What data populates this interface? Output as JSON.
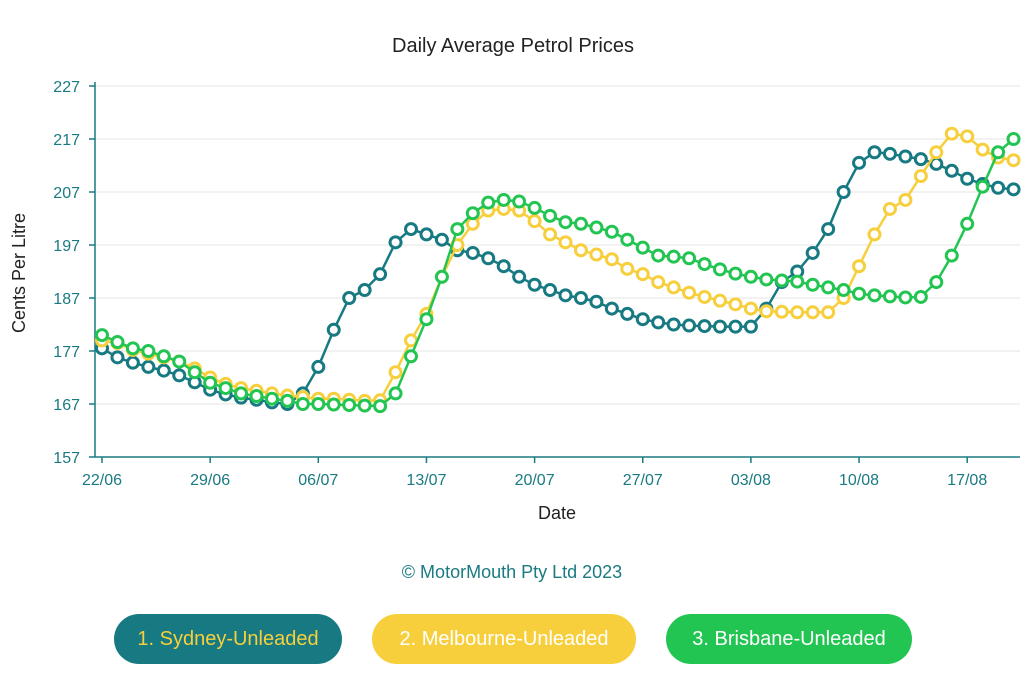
{
  "chart_data": {
    "type": "line",
    "title": "Daily Average Petrol Prices",
    "xlabel": "Date",
    "ylabel": "Cents Per Litre",
    "ylim": [
      157,
      227
    ],
    "yticks": [
      157,
      167,
      177,
      187,
      197,
      207,
      217,
      227
    ],
    "grid": true,
    "legend_position": "bottom",
    "x_tick_labels": [
      "22/06",
      "29/06",
      "06/07",
      "13/07",
      "20/07",
      "27/07",
      "03/08",
      "10/08",
      "17/08"
    ],
    "x_tick_index_step": 7,
    "series": [
      {
        "name": "1. Sydney-Unleaded",
        "color": "#177a82",
        "values": [
          177.5,
          175.8,
          174.8,
          174.0,
          173.3,
          172.4,
          171.1,
          169.7,
          168.8,
          168.2,
          167.8,
          167.3,
          167.0,
          169.0,
          174.0,
          181.0,
          187.0,
          188.5,
          191.5,
          197.5,
          200.0,
          199.0,
          198.0,
          196.0,
          195.5,
          194.5,
          193.0,
          191.0,
          189.5,
          188.5,
          187.5,
          187.0,
          186.3,
          185.0,
          184.0,
          183.0,
          182.4,
          182.0,
          181.8,
          181.7,
          181.6,
          181.6,
          181.6,
          185.0,
          190.0,
          192.0,
          195.5,
          200.0,
          207.0,
          212.5,
          214.5,
          214.2,
          213.7,
          213.2,
          212.3,
          211.0,
          209.5,
          208.5,
          207.8,
          207.5
        ]
      },
      {
        "name": "2. Melbourne-Unleaded",
        "color": "#f7cf3c",
        "values": [
          179.0,
          178.5,
          177.2,
          176.5,
          175.8,
          175.0,
          173.7,
          172.0,
          170.8,
          170.0,
          169.5,
          169.0,
          168.6,
          168.3,
          168.0,
          168.0,
          167.8,
          167.6,
          167.7,
          173.0,
          179.0,
          184.0,
          191.0,
          197.0,
          201.0,
          203.5,
          203.8,
          203.5,
          201.5,
          199.0,
          197.5,
          196.0,
          195.2,
          194.3,
          192.5,
          191.5,
          190.0,
          189.0,
          188.0,
          187.2,
          186.5,
          185.8,
          185.0,
          184.5,
          184.4,
          184.3,
          184.3,
          184.3,
          187.0,
          193.0,
          199.0,
          203.8,
          205.5,
          210.0,
          214.5,
          218.0,
          217.5,
          215.0,
          213.5,
          213.0
        ]
      },
      {
        "name": "3. Brisbane-Unleaded",
        "color": "#23c552",
        "values": [
          180.0,
          178.7,
          177.5,
          177.0,
          176.0,
          175.0,
          173.0,
          171.0,
          170.0,
          169.0,
          168.5,
          168.0,
          167.6,
          167.0,
          167.0,
          166.9,
          166.8,
          166.7,
          166.6,
          169.0,
          176.0,
          183.0,
          191.0,
          200.0,
          203.0,
          205.0,
          205.5,
          205.2,
          204.0,
          202.5,
          201.3,
          201.0,
          200.3,
          199.5,
          198.0,
          196.5,
          195.0,
          194.8,
          194.5,
          193.4,
          192.4,
          191.6,
          191.0,
          190.5,
          190.3,
          190.1,
          189.5,
          189.0,
          188.5,
          187.8,
          187.5,
          187.3,
          187.1,
          187.2,
          190.0,
          195.0,
          201.0,
          208.0,
          214.5,
          217.0
        ]
      }
    ]
  },
  "copyright": "© MotorMouth Pty Ltd 2023",
  "legend": [
    {
      "label": "1. Sydney-Unleaded",
      "bg": "#177a82",
      "fg": "#f7cf3c"
    },
    {
      "label": "2. Melbourne-Unleaded",
      "bg": "#f7cf3c",
      "fg": "#ffffff"
    },
    {
      "label": "3. Brisbane-Unleaded",
      "bg": "#23c552",
      "fg": "#ffffff"
    }
  ]
}
